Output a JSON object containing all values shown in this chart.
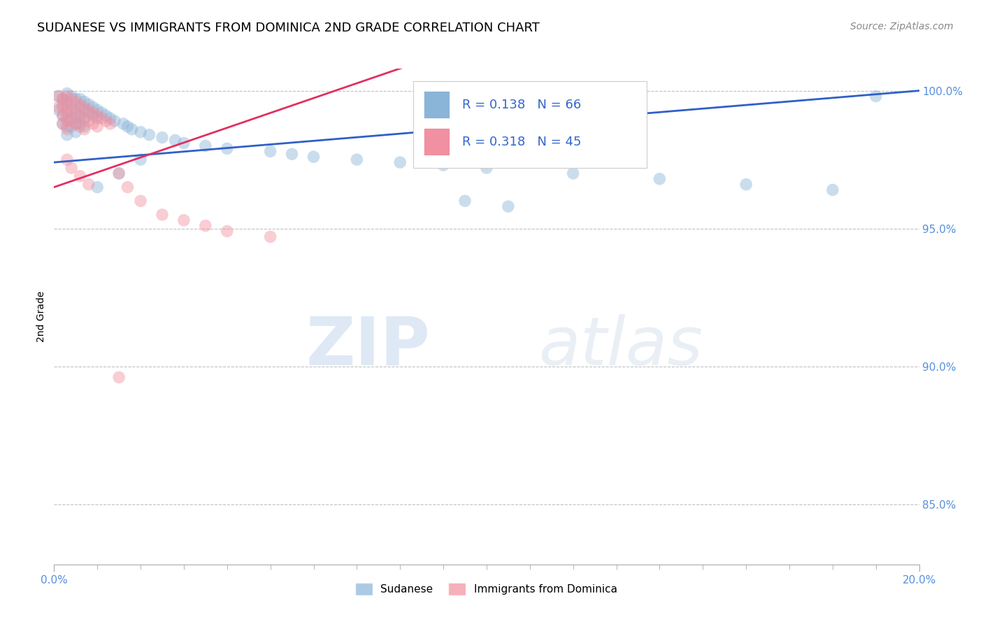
{
  "title": "SUDANESE VS IMMIGRANTS FROM DOMINICA 2ND GRADE CORRELATION CHART",
  "source_text": "Source: ZipAtlas.com",
  "ylabel": "2nd Grade",
  "xlim": [
    0.0,
    0.2
  ],
  "ylim": [
    0.828,
    1.008
  ],
  "ytick_labels": [
    "85.0%",
    "90.0%",
    "95.0%",
    "100.0%"
  ],
  "ytick_values": [
    0.85,
    0.9,
    0.95,
    1.0
  ],
  "series1_color": "#8ab4d8",
  "series2_color": "#f090a0",
  "trendline1_color": "#3060c8",
  "trendline2_color": "#e03060",
  "watermark_zip": "ZIP",
  "watermark_atlas": "atlas",
  "title_fontsize": 13,
  "background_color": "#ffffff",
  "legend_r1": "R = 0.138",
  "legend_n1": "N = 66",
  "legend_r2": "R = 0.318",
  "legend_n2": "N = 45",
  "series1_x": [
    0.001,
    0.001,
    0.002,
    0.002,
    0.002,
    0.002,
    0.003,
    0.003,
    0.003,
    0.003,
    0.003,
    0.003,
    0.004,
    0.004,
    0.004,
    0.004,
    0.005,
    0.005,
    0.005,
    0.005,
    0.005,
    0.006,
    0.006,
    0.006,
    0.006,
    0.007,
    0.007,
    0.007,
    0.007,
    0.008,
    0.008,
    0.009,
    0.009,
    0.01,
    0.01,
    0.011,
    0.012,
    0.013,
    0.014,
    0.016,
    0.017,
    0.018,
    0.02,
    0.022,
    0.025,
    0.028,
    0.03,
    0.035,
    0.04,
    0.05,
    0.055,
    0.06,
    0.07,
    0.08,
    0.09,
    0.1,
    0.12,
    0.14,
    0.16,
    0.18,
    0.19,
    0.095,
    0.105,
    0.01,
    0.015,
    0.02
  ],
  "series1_y": [
    0.998,
    0.993,
    0.997,
    0.995,
    0.991,
    0.988,
    0.999,
    0.996,
    0.993,
    0.99,
    0.987,
    0.984,
    0.998,
    0.994,
    0.99,
    0.987,
    0.997,
    0.993,
    0.99,
    0.988,
    0.985,
    0.997,
    0.994,
    0.991,
    0.988,
    0.996,
    0.993,
    0.99,
    0.987,
    0.995,
    0.992,
    0.994,
    0.991,
    0.993,
    0.99,
    0.992,
    0.991,
    0.99,
    0.989,
    0.988,
    0.987,
    0.986,
    0.985,
    0.984,
    0.983,
    0.982,
    0.981,
    0.98,
    0.979,
    0.978,
    0.977,
    0.976,
    0.975,
    0.974,
    0.973,
    0.972,
    0.97,
    0.968,
    0.966,
    0.964,
    0.998,
    0.96,
    0.958,
    0.965,
    0.97,
    0.975
  ],
  "series2_x": [
    0.001,
    0.001,
    0.002,
    0.002,
    0.002,
    0.002,
    0.003,
    0.003,
    0.003,
    0.003,
    0.003,
    0.004,
    0.004,
    0.004,
    0.005,
    0.005,
    0.005,
    0.006,
    0.006,
    0.006,
    0.007,
    0.007,
    0.007,
    0.008,
    0.008,
    0.009,
    0.009,
    0.01,
    0.01,
    0.011,
    0.012,
    0.013,
    0.015,
    0.017,
    0.02,
    0.025,
    0.03,
    0.035,
    0.04,
    0.05,
    0.003,
    0.004,
    0.006,
    0.008,
    0.015
  ],
  "series2_y": [
    0.998,
    0.994,
    0.997,
    0.994,
    0.991,
    0.988,
    0.998,
    0.995,
    0.992,
    0.989,
    0.986,
    0.997,
    0.993,
    0.989,
    0.996,
    0.992,
    0.988,
    0.995,
    0.991,
    0.987,
    0.994,
    0.99,
    0.986,
    0.993,
    0.989,
    0.992,
    0.988,
    0.991,
    0.987,
    0.99,
    0.989,
    0.988,
    0.97,
    0.965,
    0.96,
    0.955,
    0.953,
    0.951,
    0.949,
    0.947,
    0.975,
    0.972,
    0.969,
    0.966,
    0.896
  ]
}
